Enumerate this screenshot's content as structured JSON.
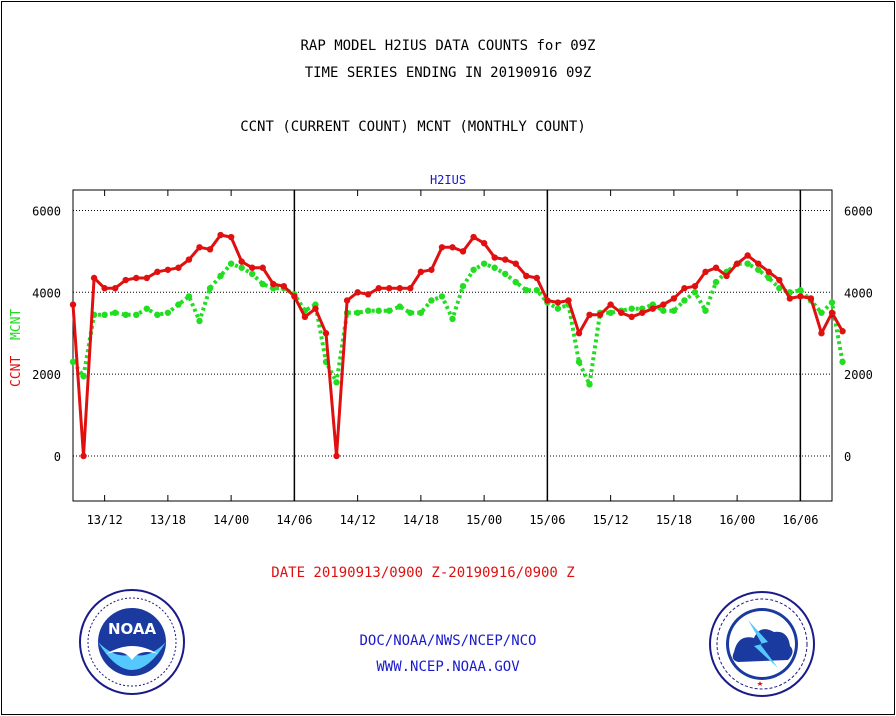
{
  "header": {
    "line1": "RAP MODEL H2IUS DATA COUNTS for 09Z",
    "line2": "TIME SERIES ENDING IN 20190916 09Z",
    "line3": "CCNT (CURRENT COUNT) MCNT (MONTHLY COUNT)"
  },
  "footer": {
    "date_range": "DATE 20190913/0900 Z-20190916/0900 Z",
    "org": "DOC/NOAA/NWS/NCEP/NCO",
    "url": "WWW.NCEP.NOAA.GOV"
  },
  "logos": {
    "left": {
      "text": "NOAA",
      "icon": "noaa-logo-icon"
    },
    "right": {
      "icon": "nws-logo-icon"
    }
  },
  "colors": {
    "ccnt": "#e01010",
    "mcnt": "#22dd22",
    "text_blue": "#1a1acc"
  },
  "chart_data": {
    "type": "line",
    "title": "H2IUS",
    "ylabel_left": [
      "CCNT",
      "MCNT"
    ],
    "y_ticks": [
      0,
      2000,
      4000,
      6000
    ],
    "ylim": [
      -1100,
      6500
    ],
    "x_start_hours": 0,
    "x_end_hours": 72,
    "x_ticks": [
      {
        "label": "13/12",
        "hour": 3
      },
      {
        "label": "13/18",
        "hour": 9
      },
      {
        "label": "14/00",
        "hour": 15
      },
      {
        "label": "14/06",
        "hour": 21
      },
      {
        "label": "14/12",
        "hour": 27
      },
      {
        "label": "14/18",
        "hour": 33
      },
      {
        "label": "15/00",
        "hour": 39
      },
      {
        "label": "15/06",
        "hour": 45
      },
      {
        "label": "15/12",
        "hour": 51
      },
      {
        "label": "15/18",
        "hour": 57
      },
      {
        "label": "16/00",
        "hour": 63
      },
      {
        "label": "16/06",
        "hour": 69
      }
    ],
    "day_boundaries": [
      21,
      45,
      69
    ],
    "grid": true,
    "series": [
      {
        "name": "CCNT",
        "style": "solid",
        "values": [
          3700,
          0,
          4350,
          4100,
          4100,
          4300,
          4350,
          4350,
          4500,
          4550,
          4600,
          4800,
          5100,
          5050,
          5400,
          5350,
          4750,
          4600,
          4600,
          4200,
          4150,
          3900,
          3400,
          3600,
          3000,
          0,
          3800,
          4000,
          3950,
          4100,
          4100,
          4100,
          4100,
          4500,
          4550,
          5100,
          5100,
          5000,
          5350,
          5200,
          4850,
          4800,
          4700,
          4400,
          4350,
          3800,
          3750,
          3800,
          3000,
          3450,
          3450,
          3700,
          3500,
          3400,
          3500,
          3600,
          3700,
          3850,
          4100,
          4150,
          4500,
          4600,
          4400,
          4700,
          4900,
          4700,
          4500,
          4300,
          3850,
          3900,
          3850,
          3000,
          3500,
          3050
        ]
      },
      {
        "name": "MCNT",
        "style": "dotted",
        "values": [
          2300,
          1950,
          3450,
          3450,
          3500,
          3450,
          3450,
          3600,
          3450,
          3500,
          3700,
          3900,
          3300,
          4100,
          4400,
          4700,
          4600,
          4450,
          4200,
          4100,
          4100,
          3950,
          3550,
          3700,
          2300,
          1800,
          3500,
          3500,
          3550,
          3550,
          3550,
          3650,
          3500,
          3500,
          3800,
          3900,
          3350,
          4150,
          4550,
          4700,
          4600,
          4450,
          4250,
          4050,
          4050,
          3750,
          3600,
          3700,
          2300,
          1750,
          3500,
          3500,
          3550,
          3600,
          3600,
          3700,
          3550,
          3550,
          3800,
          4000,
          3550,
          4250,
          4500,
          4700,
          4700,
          4550,
          4350,
          4100,
          4000,
          4050,
          3800,
          3500,
          3750,
          2300
        ]
      }
    ]
  }
}
